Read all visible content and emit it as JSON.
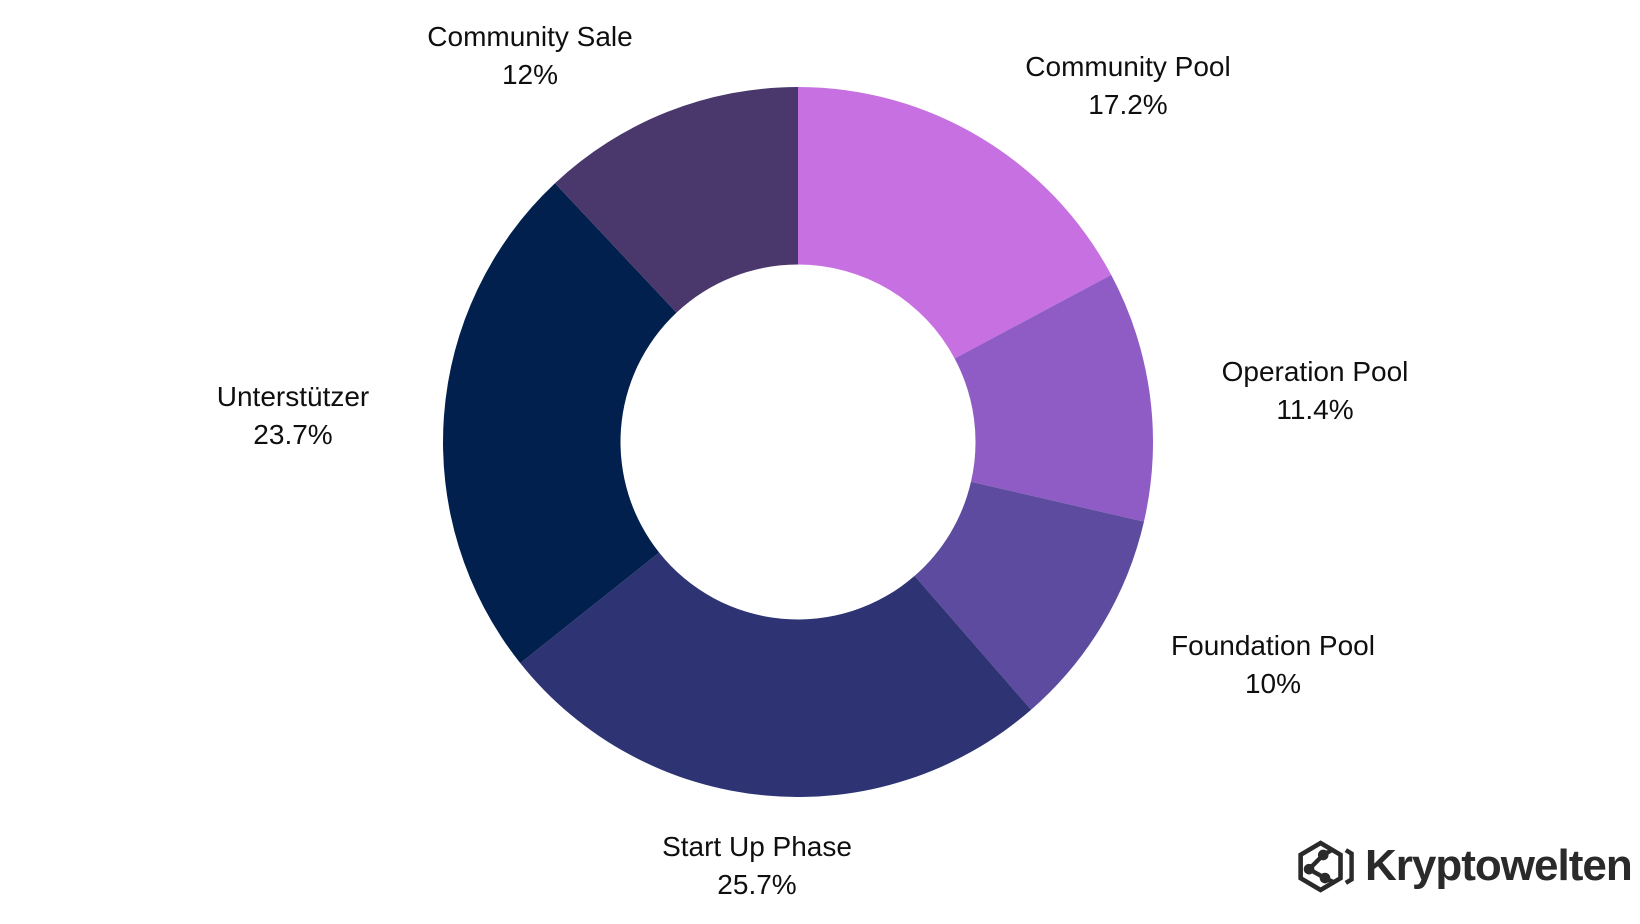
{
  "chart_data": {
    "type": "pie",
    "variant": "donut",
    "title": "",
    "background": "#ffffff",
    "start_angle_deg": 0,
    "direction": "clockwise",
    "inner_radius_ratio": 0.5,
    "legend_position": "none",
    "labels_layout": "outside-two-line",
    "label_color": "#0f0f0f",
    "total": 100,
    "slices": [
      {
        "label": "Community Pool",
        "value": 17.2,
        "pct_label": "17.2%",
        "color": "#c670e2"
      },
      {
        "label": "Operation Pool",
        "value": 11.4,
        "pct_label": "11.4%",
        "color": "#8f5cc5"
      },
      {
        "label": "Foundation Pool",
        "value": 10,
        "pct_label": "10%",
        "color": "#5c4b9e"
      },
      {
        "label": "Start Up Phase",
        "value": 25.7,
        "pct_label": "25.7%",
        "color": "#2e3373"
      },
      {
        "label": "Unterstützer",
        "value": 23.7,
        "pct_label": "23.7%",
        "color": "#01204e"
      },
      {
        "label": "Community Sale",
        "value": 12,
        "pct_label": "12%",
        "color": "#4a376b"
      }
    ]
  },
  "branding": {
    "logo_text": "Kryptowelten",
    "logo_icon": "hexagon-network-icon",
    "logo_color": "#2b2a2b"
  }
}
